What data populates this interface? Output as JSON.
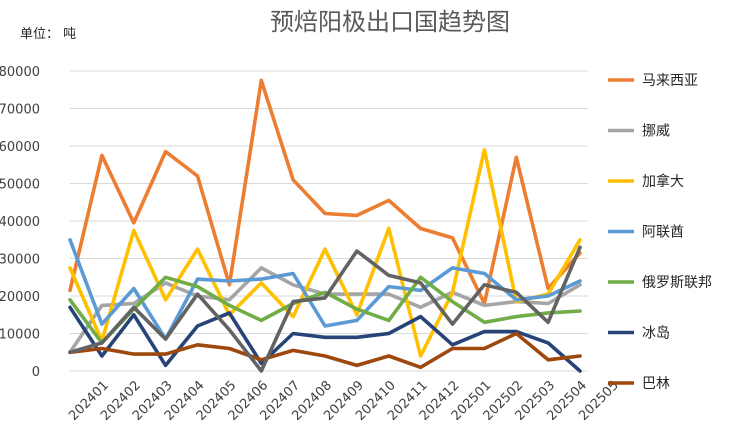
{
  "chart_data": {
    "type": "line",
    "title": "预焙阳极出口国趋势图",
    "unit_label": "单位：  吨",
    "xlabel": "",
    "ylabel": "",
    "ylim": [
      0,
      80000
    ],
    "yticks": [
      0,
      10000,
      20000,
      30000,
      40000,
      50000,
      60000,
      70000,
      80000
    ],
    "grid": "horizontal",
    "legend_position": "right",
    "categories": [
      "202401",
      "202402",
      "202403",
      "202404",
      "202405",
      "202406",
      "202407",
      "202408",
      "202409",
      "202410",
      "202411",
      "202412",
      "202501",
      "202502",
      "202503",
      "202504",
      "202505"
    ],
    "series": [
      {
        "name": "马来西亚",
        "color": "#ED7D31",
        "values": [
          21500,
          57500,
          39500,
          58500,
          52000,
          23000,
          77500,
          51000,
          42000,
          41500,
          45500,
          38000,
          35500,
          18000,
          57000,
          22000,
          31500
        ]
      },
      {
        "name": "挪威",
        "color": "#A5A5A5",
        "values": [
          5000,
          17500,
          18000,
          23500,
          20000,
          19000,
          27500,
          23000,
          20500,
          20500,
          20500,
          17000,
          21000,
          17500,
          18500,
          18000,
          23000
        ]
      },
      {
        "name": "加拿大",
        "color": "#FFC000",
        "values": [
          27500,
          8000,
          37500,
          19000,
          32500,
          15000,
          23500,
          14500,
          32500,
          15000,
          38000,
          4000,
          21000,
          59000,
          18500,
          20500,
          35000
        ]
      },
      {
        "name": "阿联酋",
        "color": "#5B9BD5",
        "values": [
          35000,
          12500,
          22000,
          8500,
          24500,
          24000,
          24500,
          26000,
          12000,
          13500,
          22500,
          21500,
          27500,
          26000,
          19000,
          20000,
          24000
        ]
      },
      {
        "name": "俄罗斯联邦",
        "color": "#70AD47",
        "values": [
          19000,
          7500,
          16500,
          25000,
          22500,
          17500,
          13500,
          18000,
          21000,
          16500,
          13500,
          25000,
          18500,
          13000,
          14500,
          15500,
          16000
        ]
      },
      {
        "name": "冰岛",
        "color": "#264478",
        "values": [
          17000,
          4000,
          15000,
          1500,
          12000,
          15500,
          2000,
          10000,
          9000,
          9000,
          10000,
          14500,
          7000,
          10500,
          10500,
          7500,
          0
        ]
      },
      {
        "name": "巴林",
        "color": "#9E480E",
        "values": [
          5000,
          6000,
          4500,
          4500,
          7000,
          6000,
          3000,
          5500,
          4000,
          1500,
          4000,
          1000,
          6000,
          6000,
          10000,
          3000,
          4000
        ]
      },
      {
        "name": "",
        "color": "#636363",
        "values": [
          5000,
          7500,
          17000,
          8500,
          20500,
          11000,
          0,
          18500,
          19500,
          32000,
          25500,
          23500,
          12500,
          23000,
          21000,
          13000,
          33000
        ]
      }
    ]
  }
}
